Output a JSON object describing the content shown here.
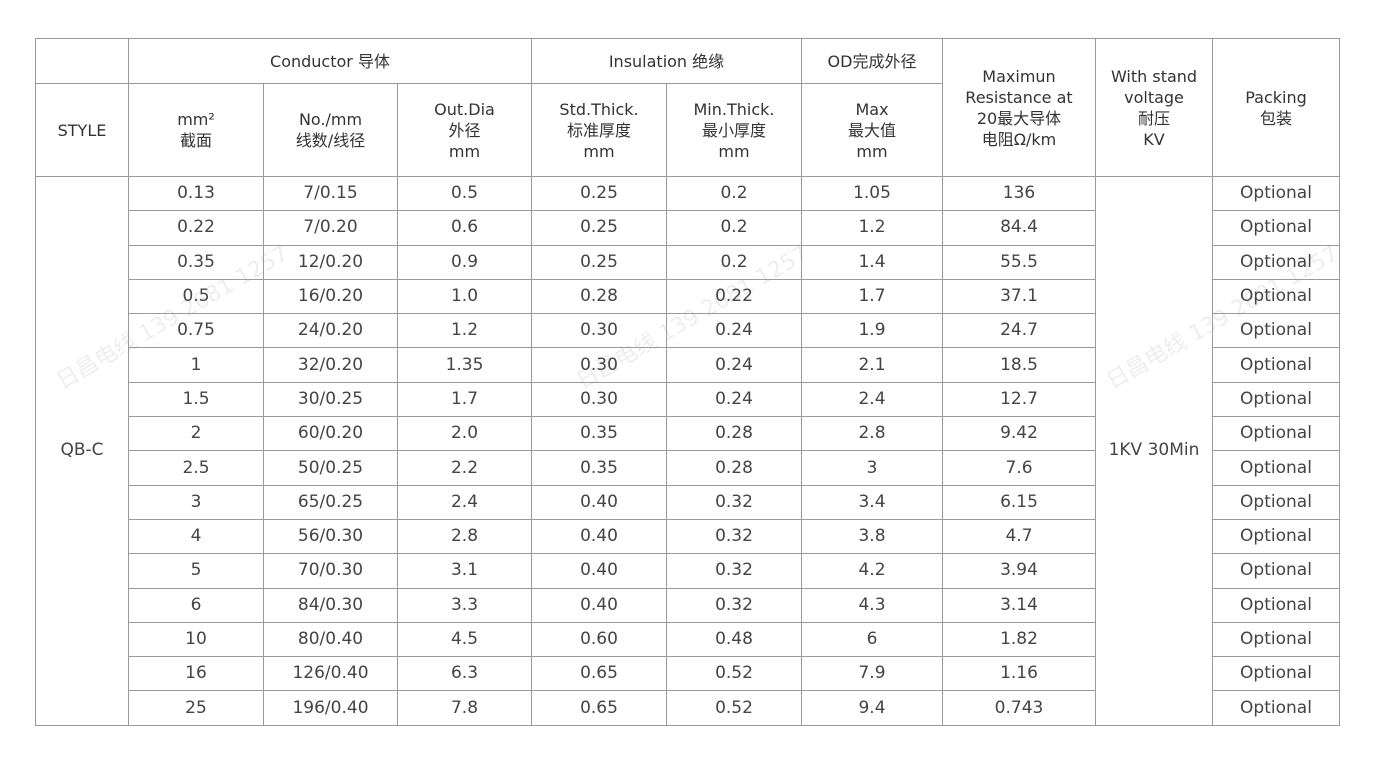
{
  "watermark": "日昌电线 139 2681 1257",
  "header": {
    "style": "STYLE",
    "conductor": "Conductor 导体",
    "insulation": "Insulation 绝缘",
    "od": "OD完成外径",
    "resistance": [
      "Maximun",
      "Resistance at",
      "20最大导体",
      "电阻Ω/km"
    ],
    "voltage": [
      "With stand",
      "voltage",
      "耐压",
      "KV"
    ],
    "packing": [
      "Packing",
      "包装"
    ],
    "area": [
      "mm²",
      "截面"
    ],
    "strands": [
      "No./mm",
      "线数/线径"
    ],
    "out_dia": [
      "Out.Dia",
      "外径",
      "mm"
    ],
    "std_thick": [
      "Std.Thick.",
      "标准厚度",
      "mm"
    ],
    "min_thick": [
      "Min.Thick.",
      "最小厚度",
      "mm"
    ],
    "max_od": [
      "Max",
      "最大值",
      "mm"
    ]
  },
  "style_value": "QB-C",
  "voltage_value": "1KV 30Min",
  "rows": [
    [
      "0.13",
      "7/0.15",
      "0.5",
      "0.25",
      "0.2",
      "1.05",
      "136",
      "Optional"
    ],
    [
      "0.22",
      "7/0.20",
      "0.6",
      "0.25",
      "0.2",
      "1.2",
      "84.4",
      "Optional"
    ],
    [
      "0.35",
      "12/0.20",
      "0.9",
      "0.25",
      "0.2",
      "1.4",
      "55.5",
      "Optional"
    ],
    [
      "0.5",
      "16/0.20",
      "1.0",
      "0.28",
      "0.22",
      "1.7",
      "37.1",
      "Optional"
    ],
    [
      "0.75",
      "24/0.20",
      "1.2",
      "0.30",
      "0.24",
      "1.9",
      "24.7",
      "Optional"
    ],
    [
      "1",
      "32/0.20",
      "1.35",
      "0.30",
      "0.24",
      "2.1",
      "18.5",
      "Optional"
    ],
    [
      "1.5",
      "30/0.25",
      "1.7",
      "0.30",
      "0.24",
      "2.4",
      "12.7",
      "Optional"
    ],
    [
      "2",
      "60/0.20",
      "2.0",
      "0.35",
      "0.28",
      "2.8",
      "9.42",
      "Optional"
    ],
    [
      "2.5",
      "50/0.25",
      "2.2",
      "0.35",
      "0.28",
      "3",
      "7.6",
      "Optional"
    ],
    [
      "3",
      "65/0.25",
      "2.4",
      "0.40",
      "0.32",
      "3.4",
      "6.15",
      "Optional"
    ],
    [
      "4",
      "56/0.30",
      "2.8",
      "0.40",
      "0.32",
      "3.8",
      "4.7",
      "Optional"
    ],
    [
      "5",
      "70/0.30",
      "3.1",
      "0.40",
      "0.32",
      "4.2",
      "3.94",
      "Optional"
    ],
    [
      "6",
      "84/0.30",
      "3.3",
      "0.40",
      "0.32",
      "4.3",
      "3.14",
      "Optional"
    ],
    [
      "10",
      "80/0.40",
      "4.5",
      "0.60",
      "0.48",
      "6",
      "1.82",
      "Optional"
    ],
    [
      "16",
      "126/0.40",
      "6.3",
      "0.65",
      "0.52",
      "7.9",
      "1.16",
      "Optional"
    ],
    [
      "25",
      "196/0.40",
      "7.8",
      "0.65",
      "0.52",
      "9.4",
      "0.743",
      "Optional"
    ]
  ]
}
